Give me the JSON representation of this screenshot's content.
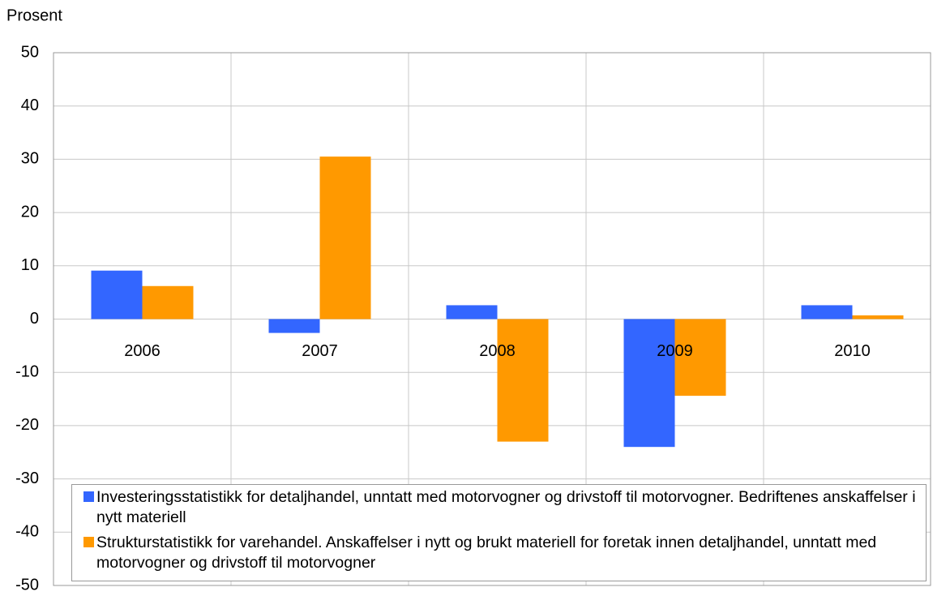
{
  "chart_data": {
    "type": "bar",
    "y_axis_label": "Prosent",
    "categories": [
      "2006",
      "2007",
      "2008",
      "2009",
      "2010"
    ],
    "series": [
      {
        "name": "Investeringsstatistikk for detaljhandel, unntatt med motorvogner og drivstoff til motorvogner. Bedriftenes anskaffelser i nytt materiell",
        "color": "#3366ff",
        "values": [
          9.1,
          -2.6,
          2.6,
          -24,
          2.6
        ]
      },
      {
        "name": "Strukturstatistikk for varehandel. Anskaffelser i nytt og brukt materiell for foretak innen detaljhandel, unntatt med motorvogner og drivstoff til motorvogner",
        "color": "#ff9900",
        "values": [
          6.2,
          30.5,
          -23,
          -14.4,
          0.7
        ]
      }
    ],
    "ylim": [
      -50,
      50
    ],
    "yticks": [
      -50,
      -40,
      -30,
      -20,
      -10,
      0,
      10,
      20,
      30,
      40,
      50
    ],
    "grid": true,
    "legend": "bottom"
  }
}
